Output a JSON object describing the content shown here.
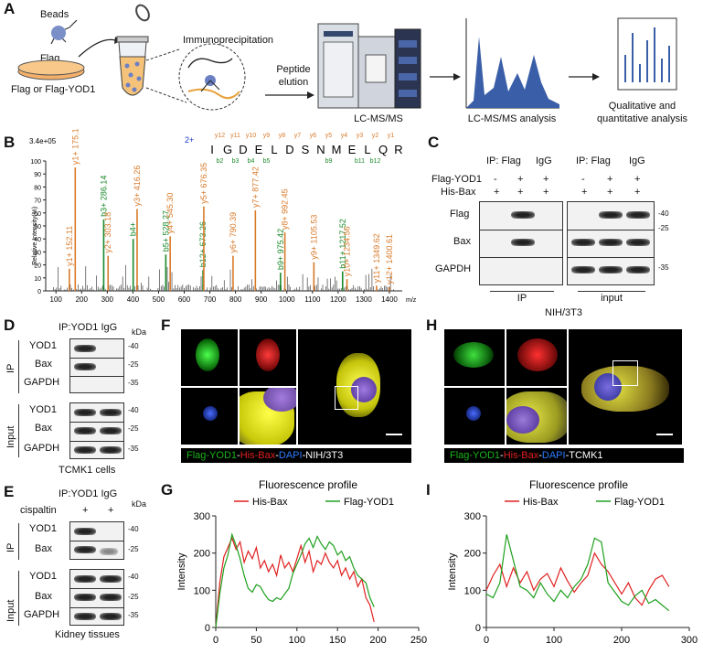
{
  "panelA": {
    "label": "A",
    "beads": "Beads",
    "flag": "Flag",
    "flag_or": "Flag or Flag-YOD1",
    "ip": "Immunoprecipitation",
    "peptide": "Peptide",
    "elution": "elution",
    "lcms": "LC-MS/MS",
    "analysis": "LC-MS/MS analysis",
    "qual1": "Qualitative and",
    "qual2": "quantitative analysis"
  },
  "panelB": {
    "label": "B",
    "scale": "3.4e+05",
    "charge": "2+",
    "ylabel": "Relative Intensity(%)",
    "xunit": "m/z",
    "sequence": [
      "I",
      "G",
      "D",
      "E",
      "L",
      "D",
      "S",
      "N",
      "M",
      "E",
      "L",
      "Q",
      "R"
    ],
    "y_ions_top": [
      "y12",
      "y11",
      "y10",
      "y9",
      "y8",
      "y7",
      "y6",
      "y5",
      "y4",
      "y3",
      "y2",
      "y1"
    ],
    "b_ions_bottom": [
      "b2",
      "b3",
      "b4",
      "b5",
      "b9",
      "b11",
      "b12"
    ],
    "xticks": [
      "100",
      "200",
      "300",
      "400",
      "500",
      "600",
      "700",
      "800",
      "900",
      "1000",
      "1100",
      "1200",
      "1300",
      "1400"
    ],
    "yticks": [
      "0",
      "10",
      "20",
      "30",
      "40",
      "50",
      "60",
      "70",
      "80",
      "90",
      "100"
    ],
    "peaks": [
      {
        "mz": 152.11,
        "h": 17,
        "label": "y1+ 152.11",
        "type": "y"
      },
      {
        "mz": 175.12,
        "h": 95,
        "label": "y1+ 175.12",
        "type": "y"
      },
      {
        "mz": 286.14,
        "h": 55,
        "label": "b3+ 286.14",
        "type": "b"
      },
      {
        "mz": 303.18,
        "h": 27,
        "label": "y2+ 303.18",
        "type": "y"
      },
      {
        "mz": 416.26,
        "h": 63,
        "label": "y3+ 416.26",
        "type": "y"
      },
      {
        "mz": 401.0,
        "h": 40,
        "label": "b4+",
        "type": "b"
      },
      {
        "mz": 528.27,
        "h": 28,
        "label": "b5+ 528.27",
        "type": "b"
      },
      {
        "mz": 545.3,
        "h": 42,
        "label": "y4+ 545.30",
        "type": "y"
      },
      {
        "mz": 673.26,
        "h": 16,
        "label": "b12+ 673.26",
        "type": "b"
      },
      {
        "mz": 676.35,
        "h": 65,
        "label": "y5+ 676.35",
        "type": "y"
      },
      {
        "mz": 790.39,
        "h": 27,
        "label": "y6+ 790.39",
        "type": "y"
      },
      {
        "mz": 877.42,
        "h": 62,
        "label": "y7+ 877.42",
        "type": "y"
      },
      {
        "mz": 975.42,
        "h": 14,
        "label": "b9+ 975.42",
        "type": "b"
      },
      {
        "mz": 992.45,
        "h": 45,
        "label": "y8+ 992.45",
        "type": "y"
      },
      {
        "mz": 1105.53,
        "h": 22,
        "label": "y9+ 1105.53",
        "type": "y"
      },
      {
        "mz": 1217.52,
        "h": 15,
        "label": "b11+ 1217.52",
        "type": "b"
      },
      {
        "mz": 1234.56,
        "h": 9,
        "label": "y10+ 1234.56",
        "type": "y"
      },
      {
        "mz": 1349.62,
        "h": 4,
        "label": "y11+ 1349.62",
        "type": "y"
      },
      {
        "mz": 1400.61,
        "h": 3,
        "label": "y12+ 1400.61",
        "type": "y"
      }
    ]
  },
  "panelC": {
    "label": "C",
    "ip_flag": "IP: Flag",
    "igg": "IgG",
    "flag_yod1": "Flag-YOD1",
    "his_bax": "His-Bax",
    "signs_flag": [
      "-",
      "+",
      "+",
      "-",
      "+",
      "+"
    ],
    "signs_bax": [
      "+",
      "+",
      "+",
      "+",
      "+",
      "+"
    ],
    "rows": [
      "Flag",
      "Bax",
      "GAPDH"
    ],
    "kda": [
      "-40",
      "-25",
      "-35"
    ],
    "ip": "IP",
    "input": "input",
    "cells": "NIH/3T3"
  },
  "panelD": {
    "label": "D",
    "header": "IP:YOD1 IgG",
    "kda": "kDa",
    "ip": "IP",
    "input": "Input",
    "rows_ip": [
      "YOD1",
      "Bax",
      "GAPDH"
    ],
    "rows_input": [
      "YOD1",
      "Bax",
      "GAPDH"
    ],
    "kda_ip": [
      "-40",
      "-25",
      "-35"
    ],
    "kda_input": [
      "-40",
      "-25",
      "-35"
    ],
    "cells": "TCMK1 cells"
  },
  "panelE": {
    "label": "E",
    "header": "IP:YOD1 IgG",
    "cispaltin": "cispaltin",
    "signs": [
      "+",
      "+"
    ],
    "kda": "kDa",
    "ip": "IP",
    "input": "Input",
    "rows_ip": [
      "YOD1",
      "Bax"
    ],
    "rows_input": [
      "YOD1",
      "Bax",
      "GAPDH"
    ],
    "kda_ip": [
      "-40",
      "-25"
    ],
    "kda_input": [
      "-40",
      "-25",
      "-35"
    ],
    "tissue": "Kidney tissues"
  },
  "panelF": {
    "label": "F",
    "cap_green": "Flag-YOD1",
    "cap_dash1": "-",
    "cap_red": "His-Bax",
    "cap_dash2": "-",
    "cap_blue": "DAPI",
    "cap_dash3": "-",
    "cap_white": "NIH/3T3"
  },
  "panelH": {
    "label": "H",
    "cap_green": "Flag-YOD1",
    "cap_dash1": "-",
    "cap_red": "His-Bax",
    "cap_dash2": "-",
    "cap_blue": "DAPI",
    "cap_dash3": "-",
    "cap_white": "TCMK1"
  },
  "chart_data": [
    {
      "panel": "G",
      "type": "line",
      "title": "Fluorescence profile",
      "ylabel": "Intensity",
      "xlabel": "",
      "xlim": [
        0,
        250
      ],
      "ylim": [
        0,
        300
      ],
      "xticks": [
        0,
        50,
        100,
        150,
        200,
        250
      ],
      "yticks": [
        0,
        100,
        200,
        300
      ],
      "legend": "top",
      "series": [
        {
          "name": "His-Bax",
          "color": "#e02020",
          "x": [
            0,
            5,
            10,
            15,
            20,
            25,
            30,
            35,
            40,
            45,
            50,
            55,
            60,
            65,
            70,
            75,
            80,
            85,
            90,
            95,
            100,
            105,
            110,
            115,
            120,
            125,
            130,
            135,
            140,
            145,
            150,
            155,
            160,
            165,
            170,
            175,
            180,
            185,
            190,
            195
          ],
          "y": [
            0,
            120,
            190,
            215,
            240,
            210,
            230,
            175,
            205,
            185,
            215,
            160,
            180,
            150,
            170,
            140,
            195,
            160,
            175,
            150,
            185,
            220,
            175,
            205,
            150,
            180,
            170,
            200,
            175,
            160,
            180,
            140,
            160,
            130,
            150,
            110,
            130,
            80,
            60,
            15
          ]
        },
        {
          "name": "Flag-YOD1",
          "color": "#1ea01e",
          "x": [
            0,
            5,
            10,
            15,
            20,
            25,
            30,
            35,
            40,
            45,
            50,
            55,
            60,
            65,
            70,
            75,
            80,
            85,
            90,
            95,
            100,
            105,
            110,
            115,
            120,
            125,
            130,
            135,
            140,
            145,
            150,
            155,
            160,
            165,
            170,
            175,
            180,
            185,
            190,
            195
          ],
          "y": [
            0,
            90,
            160,
            195,
            250,
            220,
            185,
            140,
            105,
            95,
            115,
            110,
            90,
            75,
            70,
            80,
            75,
            90,
            105,
            145,
            170,
            195,
            225,
            240,
            215,
            245,
            225,
            210,
            230,
            220,
            195,
            205,
            180,
            190,
            160,
            140,
            130,
            120,
            80,
            55
          ]
        }
      ]
    },
    {
      "panel": "I",
      "type": "line",
      "title": "Fluorescence profile",
      "ylabel": "Intensity",
      "xlabel": "",
      "xlim": [
        0,
        300
      ],
      "ylim": [
        0,
        300
      ],
      "xticks": [
        0,
        100,
        200,
        300
      ],
      "yticks": [
        0,
        100,
        200,
        300
      ],
      "legend": "top",
      "series": [
        {
          "name": "His-Bax",
          "color": "#e02020",
          "x": [
            0,
            10,
            20,
            30,
            40,
            50,
            60,
            70,
            80,
            90,
            100,
            110,
            120,
            130,
            140,
            150,
            160,
            170,
            180,
            190,
            200,
            210,
            220,
            230,
            240,
            250,
            260,
            270
          ],
          "y": [
            100,
            140,
            170,
            110,
            160,
            120,
            150,
            100,
            130,
            145,
            110,
            160,
            125,
            95,
            120,
            140,
            200,
            170,
            150,
            120,
            90,
            120,
            80,
            60,
            100,
            130,
            140,
            110
          ]
        },
        {
          "name": "Flag-YOD1",
          "color": "#1ea01e",
          "x": [
            0,
            10,
            20,
            30,
            40,
            50,
            60,
            70,
            80,
            90,
            100,
            110,
            120,
            130,
            140,
            150,
            160,
            170,
            180,
            190,
            200,
            210,
            220,
            230,
            240,
            250,
            260,
            270
          ],
          "y": [
            90,
            80,
            120,
            250,
            180,
            110,
            100,
            80,
            120,
            90,
            70,
            100,
            80,
            110,
            130,
            170,
            240,
            230,
            120,
            95,
            70,
            60,
            85,
            100,
            65,
            75,
            60,
            45
          ]
        }
      ]
    }
  ]
}
